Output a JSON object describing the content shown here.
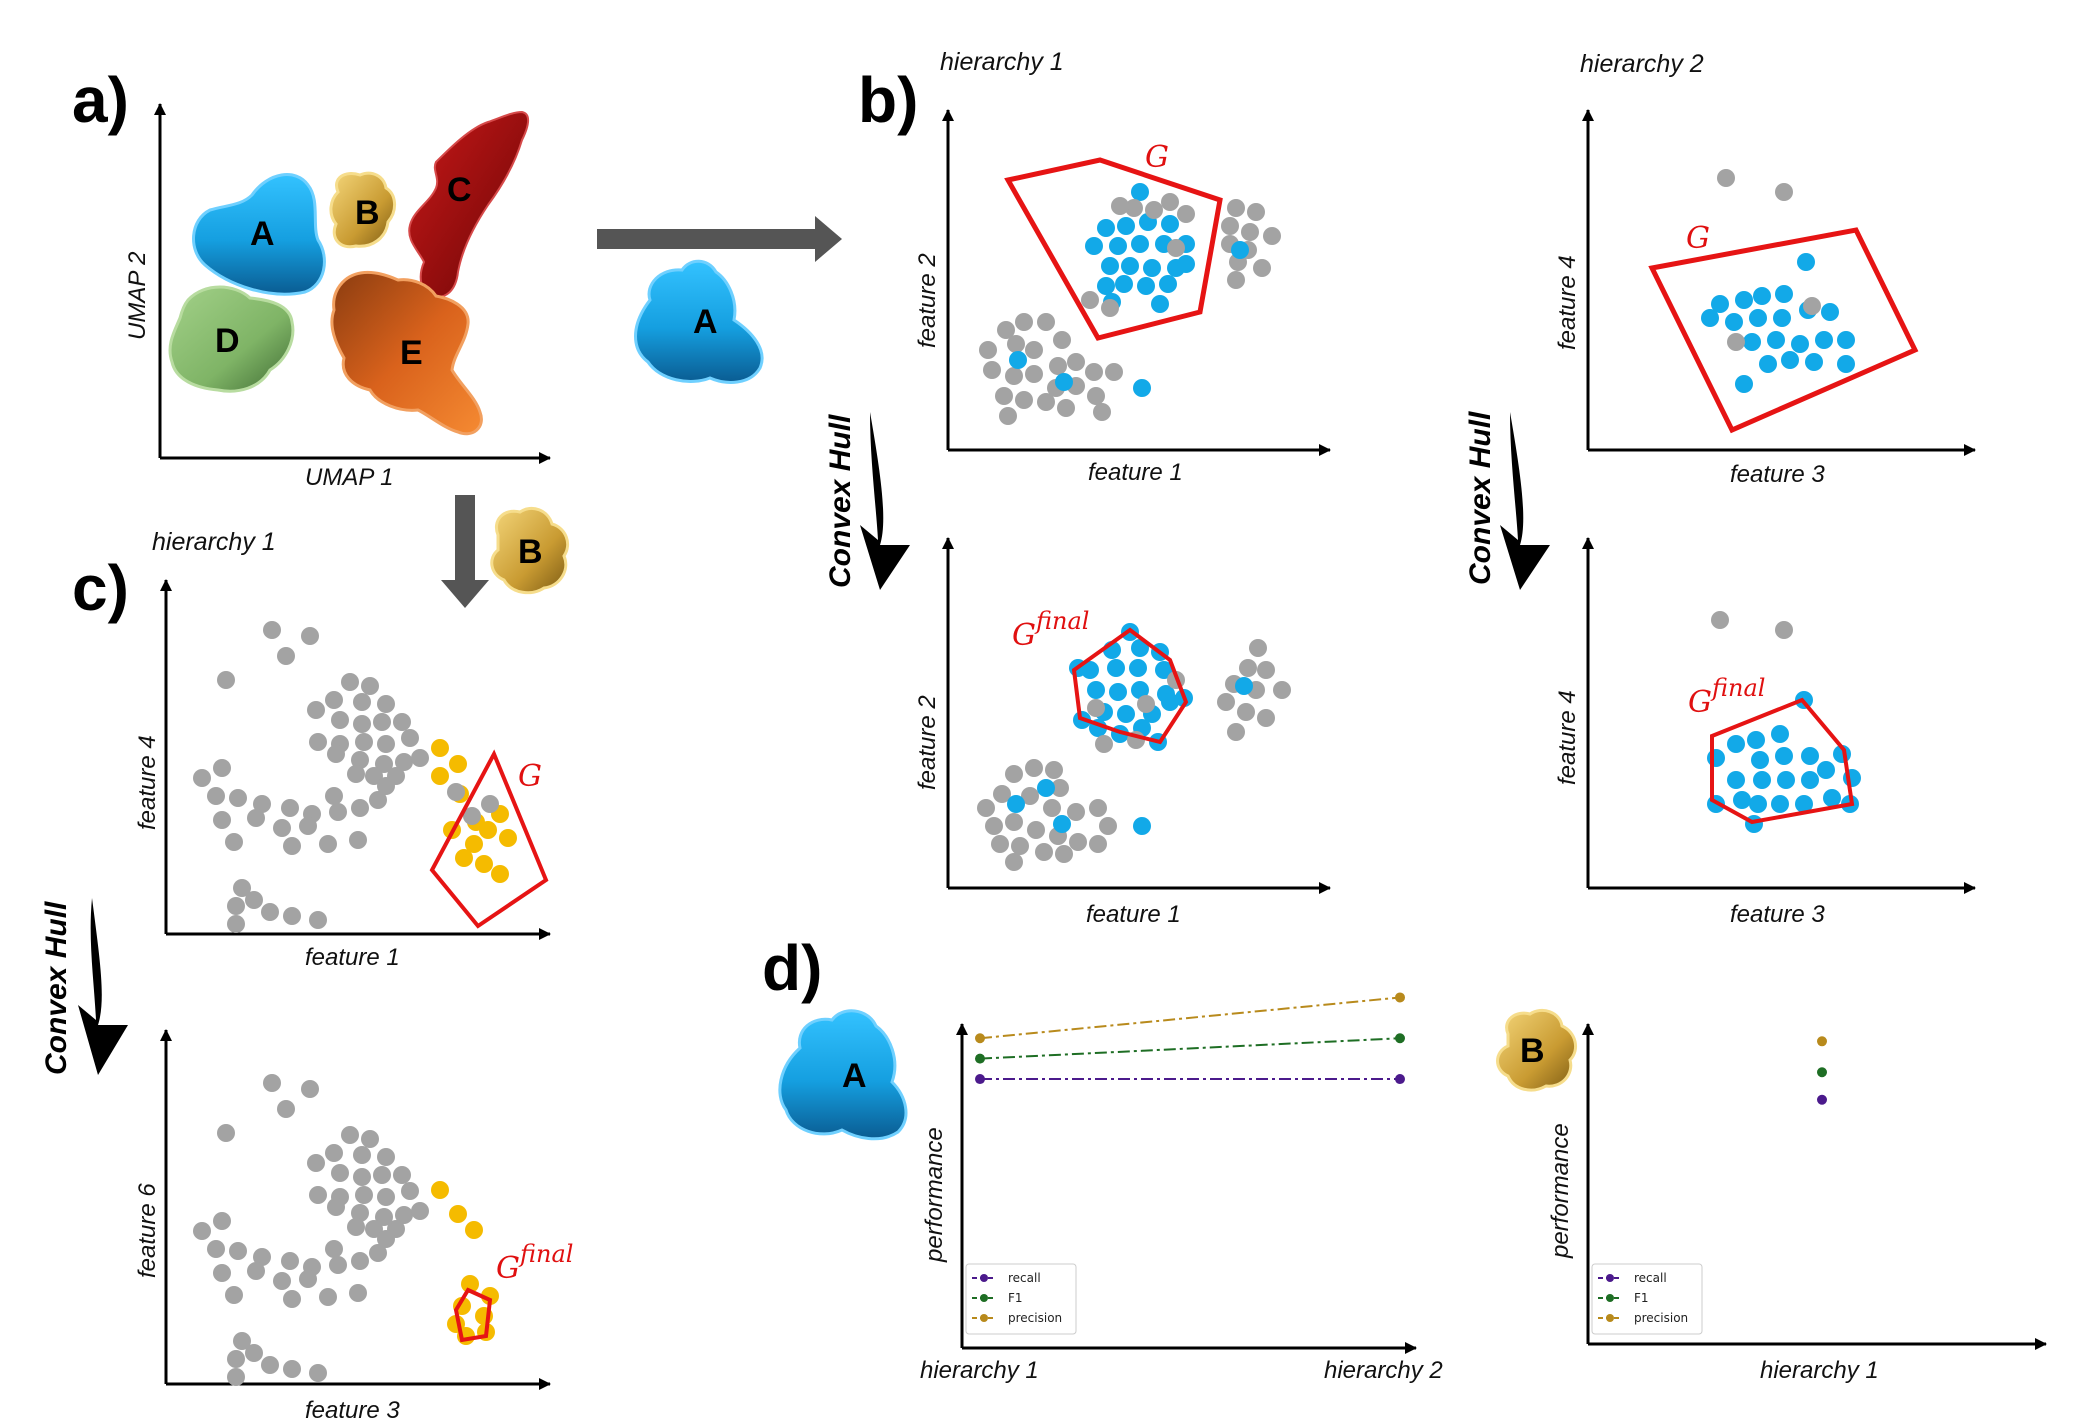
{
  "panels": {
    "a": {
      "letter": "a)",
      "xlabel": "UMAP 1",
      "ylabel": "UMAP 2",
      "clusters": [
        {
          "label": "A",
          "color": "#1ea8e6"
        },
        {
          "label": "B",
          "color": "#d9b23a"
        },
        {
          "label": "C",
          "color": "#a80c0c"
        },
        {
          "label": "D",
          "color": "#7fb466"
        },
        {
          "label": "E",
          "color": "#d9621c"
        }
      ]
    },
    "b": {
      "letter": "b)",
      "arrow_blob": "A",
      "hierarchy1": {
        "title": "hierarchy 1",
        "xlabel": "feature 1",
        "ylabel": "feature 2",
        "hull": "G",
        "final_hull": "G",
        "final_sup": "final"
      },
      "hierarchy2": {
        "title": "hierarchy 2",
        "xlabel": "feature 3",
        "ylabel": "feature 4",
        "hull": "G",
        "final_hull": "G",
        "final_sup": "final"
      },
      "convex_hull_label": "Convex Hull"
    },
    "c": {
      "letter": "c)",
      "arrow_blob": "B",
      "title": "hierarchy 1",
      "top": {
        "xlabel": "feature 1",
        "ylabel": "feature 4",
        "hull": "G"
      },
      "bottom": {
        "xlabel": "feature 3",
        "ylabel": "feature 6",
        "hull": "G",
        "final_sup": "final"
      },
      "convex_hull_label": "Convex Hull"
    },
    "d": {
      "letter": "d)",
      "ylabel": "performance"
    }
  },
  "colors": {
    "cluster_a": "#12a9e8",
    "cluster_b": "#f5bb00",
    "other": "#a3a3a3",
    "hull": "#e61414"
  },
  "chart_data": [
    {
      "type": "line",
      "cluster": "A",
      "categories": [
        "hierarchy 1",
        "hierarchy 2"
      ],
      "ylabel": "performance",
      "ylim": [
        0,
        1
      ],
      "legend": "lower-left",
      "series": [
        {
          "name": "recall",
          "color": "#4b1a8c",
          "values": [
            0.62,
            0.62
          ]
        },
        {
          "name": "F1",
          "color": "#1e6e24",
          "values": [
            0.67,
            0.72
          ]
        },
        {
          "name": "precision",
          "color": "#b88a1c",
          "values": [
            0.72,
            0.82
          ]
        }
      ]
    },
    {
      "type": "scatter",
      "cluster": "B",
      "categories": [
        "hierarchy 1"
      ],
      "ylabel": "performance",
      "ylim": [
        0,
        1
      ],
      "legend": "lower-left",
      "series": [
        {
          "name": "recall",
          "color": "#4b1a8c",
          "values": [
            0.71
          ]
        },
        {
          "name": "F1",
          "color": "#1e6e24",
          "values": [
            0.79
          ]
        },
        {
          "name": "precision",
          "color": "#b88a1c",
          "values": [
            0.88
          ]
        }
      ]
    }
  ]
}
